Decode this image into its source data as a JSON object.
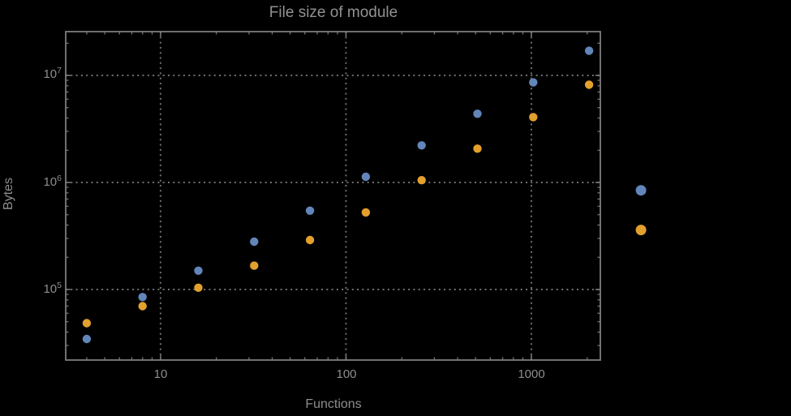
{
  "title": "File size of module",
  "colors": {
    "background": "#000000",
    "series1_blue": "#6286ba",
    "series2_orange": "#e3a02d",
    "frame_gray": "#7d7d7d",
    "grid_gray": "#6f6f6f",
    "text_gray": "#8d8d8d"
  },
  "chart_data": {
    "type": "scatter",
    "title": "File size of module",
    "xlabel": "Functions",
    "ylabel": "Bytes",
    "x_scale": "log",
    "y_scale": "log",
    "xlim": [
      3.08,
      2355
    ],
    "ylim": [
      21930,
      25650000
    ],
    "grid": "dotted",
    "x_gridlines": [
      10,
      100,
      1000
    ],
    "y_gridlines": [
      100000,
      1000000,
      10000000
    ],
    "x_tick_labels": [
      "10",
      "100",
      "1000"
    ],
    "y_tick_labels": [
      {
        "base": "10",
        "exp": "5"
      },
      {
        "base": "10",
        "exp": "6"
      },
      {
        "base": "10",
        "exp": "7"
      }
    ],
    "series": [
      {
        "name": "series-1-blue",
        "color": "#6286ba",
        "marker": "circle",
        "points": [
          [
            4,
            34500
          ],
          [
            8,
            85000
          ],
          [
            16,
            150000
          ],
          [
            32,
            280000
          ],
          [
            64,
            545000
          ],
          [
            128,
            1130000
          ],
          [
            256,
            2220000
          ],
          [
            512,
            4380000
          ],
          [
            1024,
            8600000
          ],
          [
            2048,
            17000000
          ]
        ]
      },
      {
        "name": "series-2-orange",
        "color": "#e3a02d",
        "marker": "circle",
        "points": [
          [
            4,
            48500
          ],
          [
            8,
            70000
          ],
          [
            16,
            104000
          ],
          [
            32,
            167000
          ],
          [
            64,
            290000
          ],
          [
            128,
            525000
          ],
          [
            256,
            1050000
          ],
          [
            512,
            2070000
          ],
          [
            1024,
            4080000
          ],
          [
            2048,
            8200000
          ]
        ]
      }
    ],
    "legend_markers_right_of_frame": [
      {
        "series": "series-1-blue",
        "color": "#6286ba",
        "x": 3900,
        "y": 845000
      },
      {
        "series": "series-2-orange",
        "color": "#e3a02d",
        "x": 3900,
        "y": 360000
      }
    ],
    "legend_position": "right-middle"
  }
}
